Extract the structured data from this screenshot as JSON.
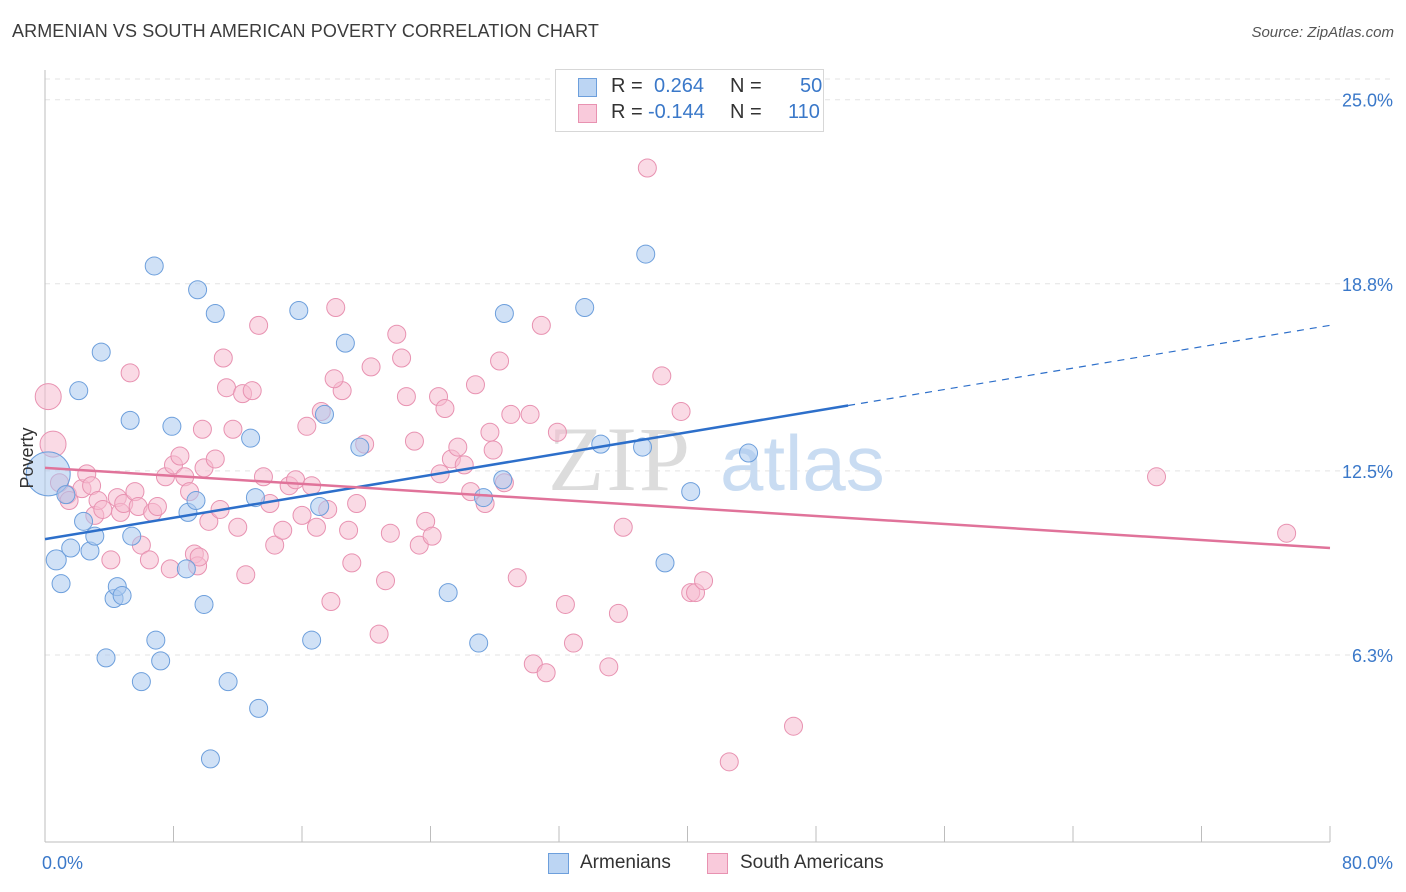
{
  "header": {
    "title": "ARMENIAN VS SOUTH AMERICAN POVERTY CORRELATION CHART",
    "source": "Source: ZipAtlas.com"
  },
  "watermark": {
    "zip": "ZIP",
    "atlas": "atlas"
  },
  "legend": {
    "r_label": "R =",
    "n_label": "N =",
    "rows": [
      {
        "r": "0.264",
        "n": "50"
      },
      {
        "r": "-0.144",
        "n": "110"
      }
    ]
  },
  "colors": {
    "armenians_fill": "#a9c8ee",
    "armenians_stroke": "#6d9fdc",
    "armenians_line": "#2d6fca",
    "south_fill": "#f6bcd0",
    "south_stroke": "#e892b1",
    "south_line": "#e0739a",
    "axis_label": "#3a78c9"
  },
  "chart_data": {
    "type": "scatter",
    "title": "ARMENIAN VS SOUTH AMERICAN POVERTY CORRELATION CHART",
    "xlabel": "",
    "ylabel": "Poverty",
    "xlim": [
      0,
      80
    ],
    "ylim": [
      0,
      26.0
    ],
    "x_tick_labels": [
      "0.0%",
      "80.0%"
    ],
    "y_ticks": [
      6.3,
      12.5,
      18.8,
      25.0
    ],
    "y_tick_labels": [
      "6.3%",
      "12.5%",
      "18.8%",
      "25.0%"
    ],
    "grid": true,
    "series": [
      {
        "name": "Armenians",
        "r": 0.264,
        "n": 50,
        "trend": {
          "x0": 0,
          "y0": 10.2,
          "x1": 50,
          "y1": 14.7,
          "dash_to_x": 80,
          "dash_to_y": 17.4
        },
        "points": [
          [
            0.2,
            12.4,
            22
          ],
          [
            0.7,
            9.5,
            10
          ],
          [
            1.0,
            8.7,
            9
          ],
          [
            1.3,
            11.7,
            9
          ],
          [
            1.6,
            9.9,
            9
          ],
          [
            2.1,
            15.2,
            9
          ],
          [
            2.4,
            10.8,
            9
          ],
          [
            2.8,
            9.8,
            9
          ],
          [
            3.1,
            10.3,
            9
          ],
          [
            3.5,
            16.5,
            9
          ],
          [
            3.8,
            6.2,
            9
          ],
          [
            4.3,
            8.2,
            9
          ],
          [
            4.5,
            8.6,
            9
          ],
          [
            4.8,
            8.3,
            9
          ],
          [
            5.3,
            14.2,
            9
          ],
          [
            5.4,
            10.3,
            9
          ],
          [
            6.0,
            5.4,
            9
          ],
          [
            6.8,
            19.4,
            9
          ],
          [
            6.9,
            6.8,
            9
          ],
          [
            7.2,
            6.1,
            9
          ],
          [
            7.9,
            14.0,
            9
          ],
          [
            8.8,
            9.2,
            9
          ],
          [
            8.9,
            11.1,
            9
          ],
          [
            9.4,
            11.5,
            9
          ],
          [
            9.5,
            18.6,
            9
          ],
          [
            9.9,
            8.0,
            9
          ],
          [
            10.3,
            2.8,
            9
          ],
          [
            10.6,
            17.8,
            9
          ],
          [
            11.4,
            5.4,
            9
          ],
          [
            12.8,
            13.6,
            9
          ],
          [
            13.1,
            11.6,
            9
          ],
          [
            13.3,
            4.5,
            9
          ],
          [
            15.8,
            17.9,
            9
          ],
          [
            16.6,
            6.8,
            9
          ],
          [
            17.1,
            11.3,
            9
          ],
          [
            17.4,
            14.4,
            9
          ],
          [
            18.7,
            16.8,
            9
          ],
          [
            19.6,
            13.3,
            9
          ],
          [
            25.1,
            8.4,
            9
          ],
          [
            27.0,
            6.7,
            9
          ],
          [
            27.3,
            11.6,
            9
          ],
          [
            28.5,
            12.2,
            9
          ],
          [
            28.6,
            17.8,
            9
          ],
          [
            33.6,
            18.0,
            9
          ],
          [
            34.6,
            13.4,
            9
          ],
          [
            37.2,
            13.3,
            9
          ],
          [
            37.4,
            19.8,
            9
          ],
          [
            38.6,
            9.4,
            9
          ],
          [
            40.2,
            11.8,
            9
          ],
          [
            43.8,
            13.1,
            9
          ]
        ]
      },
      {
        "name": "South Americans",
        "r": -0.144,
        "n": 110,
        "trend": {
          "x0": 0,
          "y0": 12.6,
          "x1": 80,
          "y1": 9.9
        },
        "points": [
          [
            0.2,
            15.0,
            13
          ],
          [
            0.5,
            13.4,
            13
          ],
          [
            0.9,
            12.1,
            9
          ],
          [
            1.4,
            11.7,
            9
          ],
          [
            1.5,
            11.5,
            9
          ],
          [
            2.3,
            11.9,
            9
          ],
          [
            2.6,
            12.4,
            9
          ],
          [
            2.9,
            12.0,
            9
          ],
          [
            3.1,
            11.0,
            9
          ],
          [
            3.3,
            11.5,
            9
          ],
          [
            3.6,
            11.2,
            9
          ],
          [
            4.1,
            9.5,
            9
          ],
          [
            4.5,
            11.6,
            9
          ],
          [
            4.7,
            11.1,
            9
          ],
          [
            4.9,
            11.4,
            9
          ],
          [
            5.3,
            15.8,
            9
          ],
          [
            5.6,
            11.8,
            9
          ],
          [
            5.8,
            11.3,
            9
          ],
          [
            6.0,
            10.0,
            9
          ],
          [
            6.5,
            9.5,
            9
          ],
          [
            6.7,
            11.1,
            9
          ],
          [
            7.0,
            11.3,
            9
          ],
          [
            7.5,
            12.3,
            9
          ],
          [
            7.8,
            9.2,
            9
          ],
          [
            8.0,
            12.7,
            9
          ],
          [
            8.4,
            13.0,
            9
          ],
          [
            8.7,
            12.3,
            9
          ],
          [
            9.0,
            11.8,
            9
          ],
          [
            9.3,
            9.7,
            9
          ],
          [
            9.5,
            9.3,
            9
          ],
          [
            9.6,
            9.6,
            9
          ],
          [
            9.9,
            12.6,
            9
          ],
          [
            10.2,
            10.8,
            9
          ],
          [
            10.6,
            12.9,
            9
          ],
          [
            10.9,
            11.2,
            9
          ],
          [
            11.1,
            16.3,
            9
          ],
          [
            11.3,
            15.3,
            9
          ],
          [
            11.7,
            13.9,
            9
          ],
          [
            12.0,
            10.6,
            9
          ],
          [
            12.3,
            15.1,
            9
          ],
          [
            12.5,
            9.0,
            9
          ],
          [
            12.9,
            15.2,
            9
          ],
          [
            13.3,
            17.4,
            9
          ],
          [
            13.6,
            12.3,
            9
          ],
          [
            14.0,
            11.4,
            9
          ],
          [
            14.3,
            10.0,
            9
          ],
          [
            14.8,
            10.5,
            9
          ],
          [
            15.2,
            12.0,
            9
          ],
          [
            15.6,
            12.2,
            9
          ],
          [
            16.0,
            11.0,
            9
          ],
          [
            16.3,
            14.0,
            9
          ],
          [
            16.6,
            12.0,
            9
          ],
          [
            16.9,
            10.6,
            9
          ],
          [
            17.2,
            14.5,
            9
          ],
          [
            17.6,
            11.2,
            9
          ],
          [
            17.8,
            8.1,
            9
          ],
          [
            18.1,
            18.0,
            9
          ],
          [
            18.5,
            15.2,
            9
          ],
          [
            18.9,
            10.5,
            9
          ],
          [
            19.1,
            9.4,
            9
          ],
          [
            19.4,
            11.4,
            9
          ],
          [
            19.9,
            13.4,
            9
          ],
          [
            20.3,
            16.0,
            9
          ],
          [
            20.8,
            7.0,
            9
          ],
          [
            21.2,
            8.8,
            9
          ],
          [
            21.5,
            10.4,
            9
          ],
          [
            21.9,
            17.1,
            9
          ],
          [
            22.2,
            16.3,
            9
          ],
          [
            22.5,
            15.0,
            9
          ],
          [
            23.0,
            13.5,
            9
          ],
          [
            23.3,
            10.0,
            9
          ],
          [
            23.7,
            10.8,
            9
          ],
          [
            24.1,
            10.3,
            9
          ],
          [
            24.5,
            15.0,
            9
          ],
          [
            24.9,
            14.6,
            9
          ],
          [
            25.3,
            12.9,
            9
          ],
          [
            25.7,
            13.3,
            9
          ],
          [
            26.1,
            12.7,
            9
          ],
          [
            26.5,
            11.8,
            9
          ],
          [
            26.8,
            15.4,
            9
          ],
          [
            27.4,
            11.4,
            9
          ],
          [
            27.7,
            13.8,
            9
          ],
          [
            27.9,
            13.2,
            9
          ],
          [
            28.3,
            16.2,
            9
          ],
          [
            28.6,
            12.1,
            9
          ],
          [
            29.0,
            14.4,
            9
          ],
          [
            29.4,
            8.9,
            9
          ],
          [
            30.2,
            14.4,
            9
          ],
          [
            30.4,
            6.0,
            9
          ],
          [
            30.9,
            17.4,
            9
          ],
          [
            31.2,
            5.7,
            9
          ],
          [
            31.9,
            13.8,
            9
          ],
          [
            32.4,
            8.0,
            9
          ],
          [
            32.9,
            6.7,
            9
          ],
          [
            35.1,
            5.9,
            9
          ],
          [
            35.7,
            7.7,
            9
          ],
          [
            38.4,
            15.7,
            9
          ],
          [
            39.6,
            14.5,
            9
          ],
          [
            40.2,
            8.4,
            9
          ],
          [
            40.5,
            8.4,
            9
          ],
          [
            41.0,
            8.8,
            9
          ],
          [
            42.6,
            2.7,
            9
          ],
          [
            46.6,
            3.9,
            9
          ],
          [
            69.2,
            12.3,
            9
          ],
          [
            77.3,
            10.4,
            9
          ],
          [
            37.5,
            22.7,
            9
          ],
          [
            9.8,
            13.9,
            9
          ],
          [
            18.0,
            15.6,
            9
          ],
          [
            24.6,
            12.4,
            9
          ],
          [
            36.0,
            10.6,
            9
          ]
        ]
      }
    ],
    "legend": [
      "Armenians",
      "South Americans"
    ]
  }
}
